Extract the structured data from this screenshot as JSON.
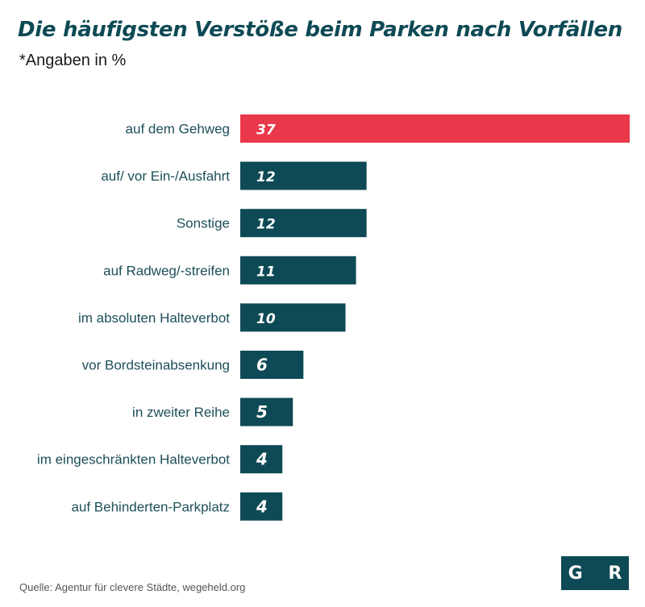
{
  "header": {
    "title": "Die häufigsten Verstöße beim Parken nach Vorfällen",
    "subtitle": "*Angaben in %"
  },
  "footer": {
    "source": "Quelle: Agentur für clevere Städte, wegeheld.org",
    "logo_text": "G R"
  },
  "colors": {
    "highlight": "#e8384a",
    "bar": "#0e4a55",
    "label": "#1d4f59"
  },
  "chart_data": {
    "type": "bar",
    "orientation": "horizontal",
    "title": "Die häufigsten Verstöße beim Parken nach Vorfällen",
    "subtitle": "*Angaben in %",
    "categories": [
      "auf dem Gehweg",
      "auf/ vor Ein-/Ausfahrt",
      "Sonstige",
      "auf Radweg/-streifen",
      "im absoluten Halteverbot",
      "vor Bordsteinabsenkung",
      "in zweiter Reihe",
      "im eingeschränkten Halteverbot",
      "auf Behinderten-Parkplatz"
    ],
    "values": [
      37,
      12,
      12,
      11,
      10,
      6,
      5,
      4,
      4
    ],
    "highlight_index": 0,
    "xlabel": "",
    "ylabel": "",
    "grid": false,
    "legend": "none"
  }
}
